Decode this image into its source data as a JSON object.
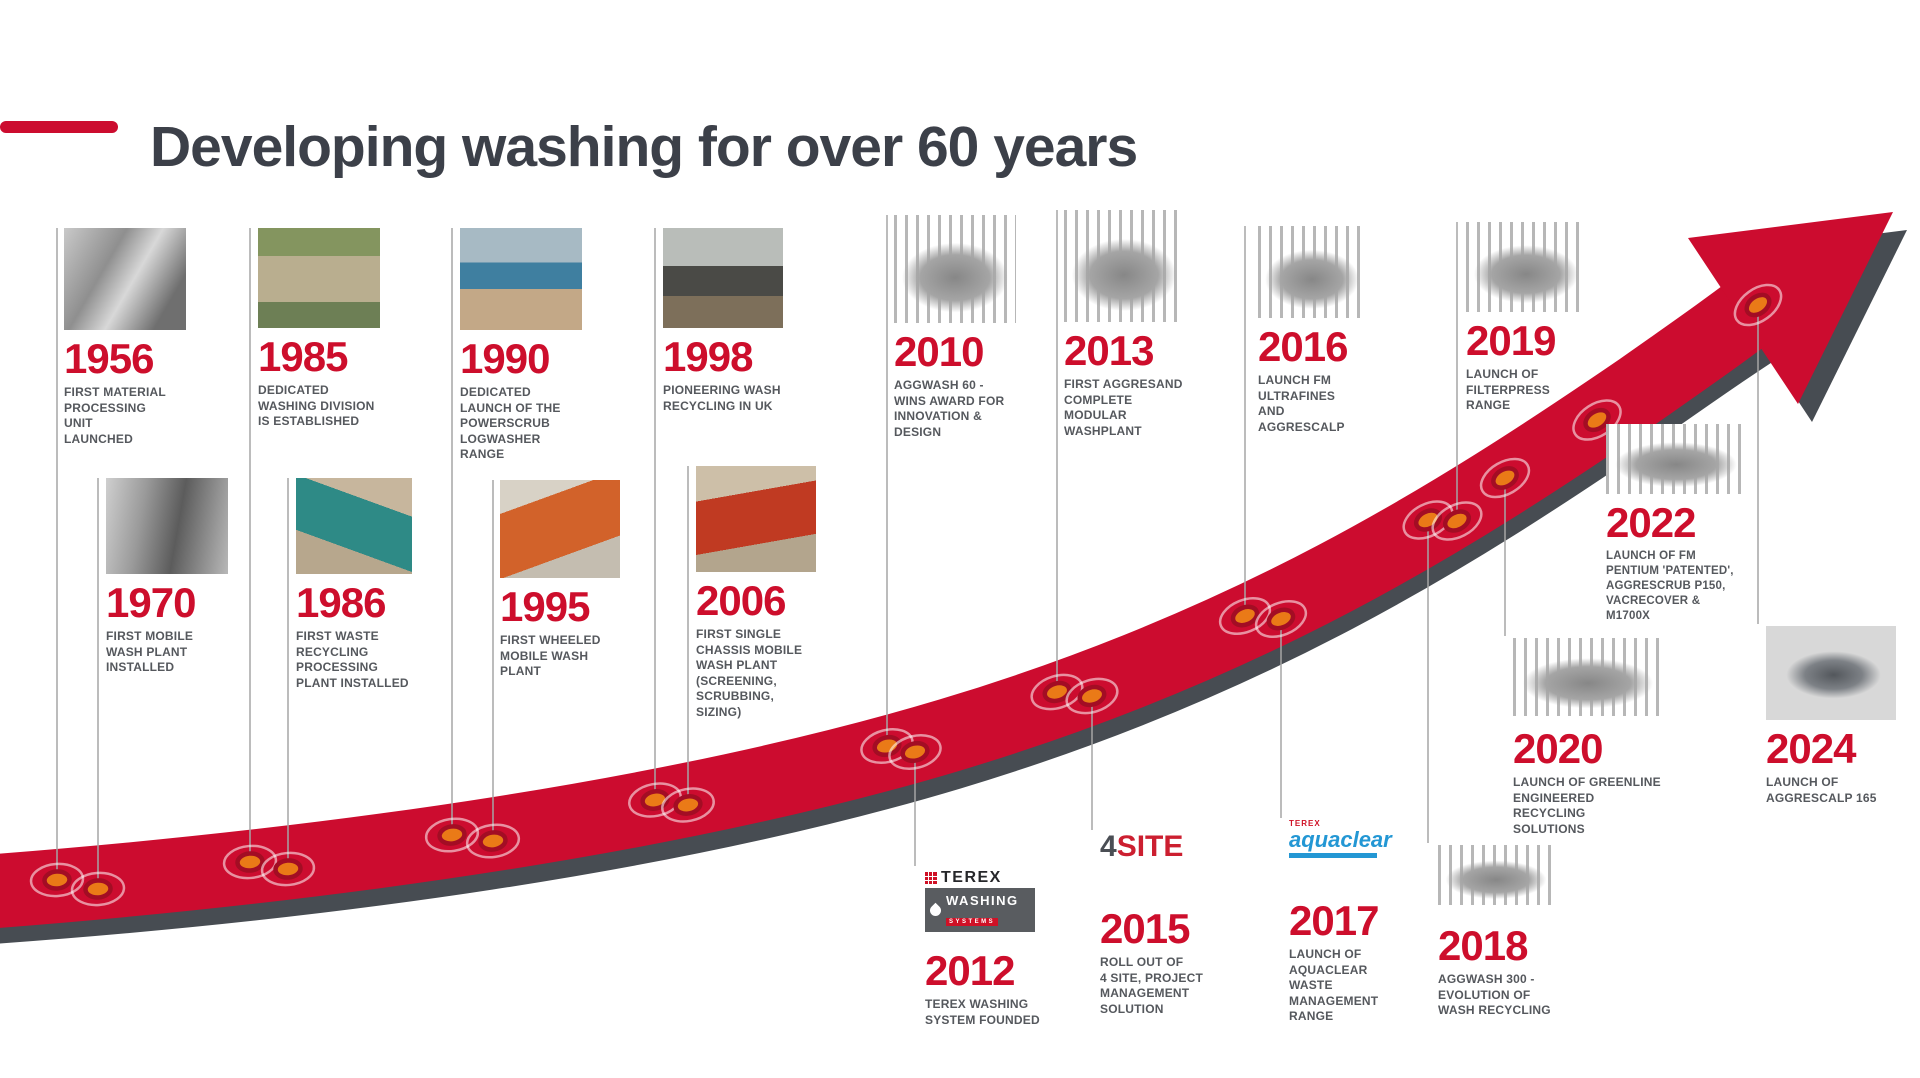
{
  "title": {
    "text": "Developing washing for over 60 years"
  },
  "colors": {
    "accent_red": "#cc0c2f",
    "arrow_shadow": "#474c52",
    "marker_orange": "#ea7a17",
    "marker_ring": "#a30d24",
    "title_dark": "#3c4049",
    "caption_gray": "#55585d"
  },
  "entries": [
    {
      "year": "1956",
      "caption": "FIRST MATERIAL\nPROCESSING\nUNIT\nLAUNCHED",
      "image": "bw-photo-first-material-processing-unit"
    },
    {
      "year": "1970",
      "caption": "FIRST MOBILE\nWASH PLANT\nINSTALLED",
      "image": "bw-photo-first-mobile-wash-plant"
    },
    {
      "year": "1985",
      "caption": "DEDICATED\nWASHING DIVISION\nIS ESTABLISHED",
      "image": "aerial-photo-washing-division-site"
    },
    {
      "year": "1986",
      "caption": "FIRST WASTE\nRECYCLING\nPROCESSING\nPLANT INSTALLED",
      "image": "photo-teal-waste-recycling-plant"
    },
    {
      "year": "1990",
      "caption": "DEDICATED\nLAUNCH OF THE\nPOWERSCRUB\nLOGWASHER RANGE",
      "image": "photo-blue-powerscrub-logwasher"
    },
    {
      "year": "1995",
      "caption": "FIRST WHEELED\nMOBILE WASH\nPLANT",
      "image": "photo-orange-wheeled-wash-plant"
    },
    {
      "year": "1998",
      "caption": "PIONEERING WASH\nRECYCLING IN UK",
      "image": "photo-excavator-wash-recycling"
    },
    {
      "year": "2006",
      "caption": "FIRST SINGLE\nCHASSIS MOBILE\nWASH PLANT\n(SCREENING,\nSCRUBBING,\nSIZING)",
      "image": "photo-red-single-chassis-wash-plant"
    },
    {
      "year": "2010",
      "caption": "AGGWASH 60 -\nWINS AWARD FOR\nINNOVATION &\nDESIGN",
      "image": "render-aggwash-60-machine"
    },
    {
      "year": "2012",
      "caption": "TEREX WASHING\nSYSTEM FOUNDED",
      "logo": {
        "brand": "TEREX",
        "line1": "WASHING",
        "line2": "SYSTEMS"
      }
    },
    {
      "year": "2013",
      "caption": "FIRST AGGRESAND\nCOMPLETE\nMODULAR\nWASHPLANT",
      "image": "render-aggresand-modular-washplant"
    },
    {
      "year": "2015",
      "caption": "ROLL OUT OF\n4 SITE, PROJECT\nMANAGEMENT\nSOLUTION",
      "logo": {
        "part1": "4",
        "part2": "SITE"
      }
    },
    {
      "year": "2016",
      "caption": "LAUNCH FM\nULTRAFINES\nAND\nAGGRESCALP",
      "image": "render-fm-ultrafines-machine"
    },
    {
      "year": "2017",
      "caption": "LAUNCH OF\nAQUACLEAR\nWASTE\nMANAGEMENT\nRANGE",
      "logo": {
        "brand": "TEREX",
        "name": "aquaclear"
      }
    },
    {
      "year": "2018",
      "caption": "AGGWASH 300 -\nEVOLUTION OF\nWASH RECYCLING",
      "image": "render-aggwash-300-machine"
    },
    {
      "year": "2019",
      "caption": "LAUNCH OF\nFILTERPRESS\nRANGE",
      "image": "render-filterpress-structure"
    },
    {
      "year": "2020",
      "caption": "LAUNCH OF GREENLINE\nENGINEERED RECYCLING\nSOLUTIONS",
      "image": "render-greenline-recycling-parts"
    },
    {
      "year": "2022",
      "caption": "LAUNCH OF FM\nPENTIUM 'PATENTED',\nAGGRESCRUB P150,\nVACRECOVER & M1700X",
      "image": "render-fm-pentium-machine"
    },
    {
      "year": "2024",
      "caption": "LAUNCH OF\nAGGRESCALP 165",
      "image": "photo-aggrescalp-165-machine"
    }
  ]
}
